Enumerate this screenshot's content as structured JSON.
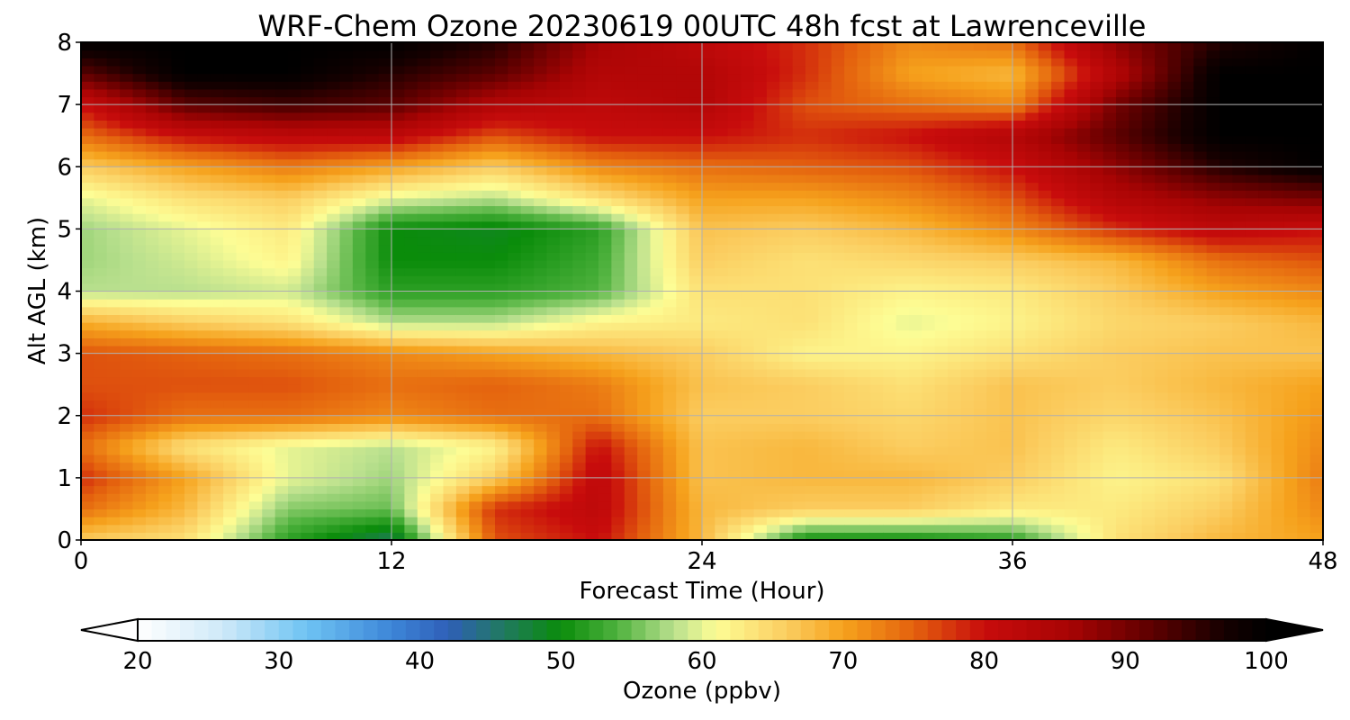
{
  "chart_data": {
    "type": "heatmap",
    "title": "WRF-Chem Ozone  20230619 00UTC 48h fcst at Lawrenceville",
    "xlabel": "Forecast Time (Hour)",
    "ylabel": "Alt AGL (km)",
    "xlim": [
      0,
      48
    ],
    "ylim": [
      0,
      8
    ],
    "xticks": [
      "0",
      "12",
      "24",
      "36",
      "48"
    ],
    "yticks": [
      "0",
      "1",
      "2",
      "3",
      "4",
      "5",
      "6",
      "7",
      "8"
    ],
    "grid": true,
    "colorbar": {
      "label": "Ozone  (ppbv)",
      "min": 20,
      "max": 100,
      "ticks": [
        "20",
        "30",
        "40",
        "50",
        "60",
        "70",
        "80",
        "90",
        "100"
      ],
      "extend": "both",
      "orientation": "horizontal"
    },
    "x": [
      0,
      4,
      8,
      12,
      16,
      20,
      24,
      28,
      32,
      36,
      40,
      44,
      48
    ],
    "y": [
      0,
      0.5,
      1,
      1.5,
      2,
      2.5,
      3,
      3.5,
      4,
      4.5,
      5,
      5.5,
      6,
      6.5,
      7,
      7.5,
      8
    ],
    "z": [
      [
        66,
        64,
        52,
        46,
        76,
        80,
        68,
        50,
        50,
        52,
        64,
        68,
        70
      ],
      [
        74,
        68,
        56,
        55,
        78,
        82,
        68,
        66,
        66,
        63,
        63,
        66,
        72
      ],
      [
        78,
        70,
        60,
        57,
        66,
        82,
        67,
        68,
        68,
        66,
        62,
        64,
        73
      ],
      [
        74,
        64,
        60,
        58,
        62,
        80,
        67,
        68,
        66,
        67,
        63,
        66,
        72
      ],
      [
        78,
        74,
        74,
        72,
        74,
        74,
        66,
        66,
        65,
        67,
        65,
        67,
        71
      ],
      [
        76,
        76,
        76,
        74,
        75,
        73,
        67,
        66,
        64,
        67,
        66,
        68,
        70
      ],
      [
        76,
        75,
        74,
        72,
        70,
        68,
        66,
        62,
        62,
        64,
        66,
        67,
        67
      ],
      [
        69,
        66,
        64,
        58,
        58,
        62,
        63,
        64,
        60,
        62,
        65,
        66,
        68
      ],
      [
        58,
        58,
        59,
        52,
        52,
        54,
        64,
        64,
        62,
        63,
        66,
        70,
        72
      ],
      [
        57,
        59,
        62,
        50,
        50,
        53,
        66,
        64,
        65,
        66,
        68,
        74,
        76
      ],
      [
        57,
        60,
        63,
        50,
        49,
        52,
        67,
        66,
        68,
        72,
        78,
        82,
        80
      ],
      [
        60,
        64,
        66,
        60,
        58,
        64,
        70,
        70,
        72,
        76,
        84,
        88,
        90
      ],
      [
        66,
        70,
        73,
        70,
        66,
        72,
        74,
        75,
        76,
        80,
        88,
        96,
        100
      ],
      [
        74,
        80,
        82,
        82,
        76,
        80,
        80,
        78,
        80,
        84,
        92,
        100,
        100
      ],
      [
        80,
        92,
        94,
        92,
        84,
        82,
        84,
        76,
        74,
        72,
        90,
        100,
        100
      ],
      [
        92,
        100,
        100,
        96,
        92,
        84,
        84,
        78,
        70,
        68,
        84,
        100,
        100
      ],
      [
        100,
        100,
        100,
        100,
        96,
        86,
        82,
        78,
        72,
        74,
        88,
        96,
        100
      ]
    ]
  }
}
